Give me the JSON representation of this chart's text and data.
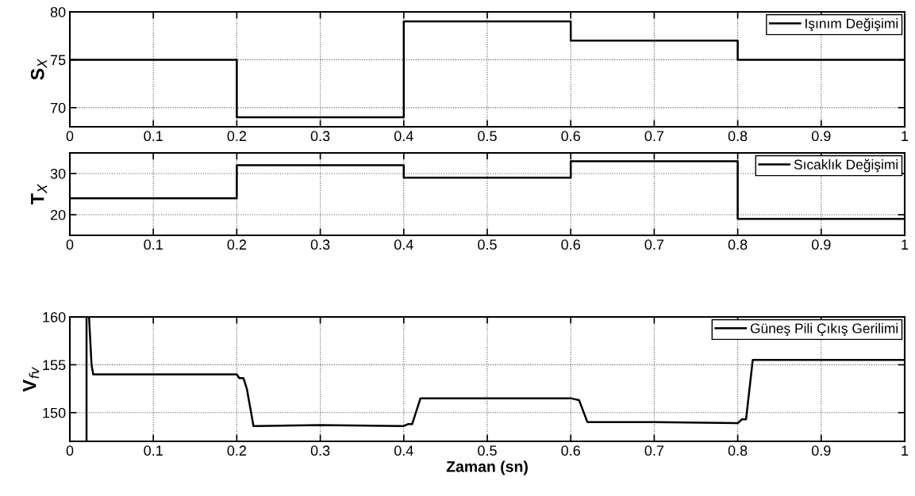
{
  "chart_data": [
    {
      "type": "step",
      "ylabel": "S$_{X}$",
      "x": [
        0,
        0.2,
        0.4,
        0.6,
        0.8,
        1
      ],
      "series": [
        {
          "name": "Işınım Değişimi",
          "color": "#000000",
          "values": [
            75,
            69,
            79,
            77,
            75,
            75
          ]
        }
      ],
      "xlim": [
        0,
        1
      ],
      "xticks": [
        0,
        0.1,
        0.2,
        0.3,
        0.4,
        0.5,
        0.6,
        0.7,
        0.8,
        0.9,
        1
      ],
      "ylim": [
        68,
        80
      ],
      "yticks": [
        70,
        75,
        80
      ],
      "grid": true,
      "legend": "top right"
    },
    {
      "type": "step",
      "ylabel": "T$_{X}$",
      "x": [
        0,
        0.2,
        0.4,
        0.6,
        0.8,
        1
      ],
      "series": [
        {
          "name": "Sıcaklık Değişimi",
          "color": "#000000",
          "values": [
            24,
            32,
            29,
            33,
            19,
            19
          ]
        }
      ],
      "xlim": [
        0,
        1
      ],
      "xticks": [
        0,
        0.1,
        0.2,
        0.3,
        0.4,
        0.5,
        0.6,
        0.7,
        0.8,
        0.9,
        1
      ],
      "ylim": [
        15,
        35
      ],
      "yticks": [
        20,
        30
      ],
      "grid": true,
      "legend": "top right"
    },
    {
      "type": "line",
      "ylabel": "V$_{fv}$",
      "xlabel": "Zaman (sn)",
      "x": [
        0.02,
        0.02,
        0.023,
        0.026,
        0.028,
        0.2,
        0.203,
        0.208,
        0.212,
        0.22,
        0.3,
        0.4,
        0.405,
        0.41,
        0.42,
        0.6,
        0.605,
        0.61,
        0.62,
        0.7,
        0.8,
        0.805,
        0.81,
        0.818,
        1
      ],
      "series": [
        {
          "name": "Güneş Pili Çıkış Gerilimi",
          "color": "#000000",
          "values": [
            147,
            160,
            160,
            155,
            154,
            154,
            153.6,
            153.6,
            152.5,
            148.6,
            148.7,
            148.6,
            148.8,
            148.8,
            151.5,
            151.5,
            151.4,
            151.3,
            149,
            149,
            148.9,
            149.3,
            149.3,
            155.5,
            155.5
          ]
        }
      ],
      "xlim": [
        0,
        1
      ],
      "xticks": [
        0,
        0.1,
        0.2,
        0.3,
        0.4,
        0.5,
        0.6,
        0.7,
        0.8,
        0.9,
        1
      ],
      "ylim": [
        147,
        160
      ],
      "yticks": [
        150,
        155,
        160
      ],
      "grid": true,
      "legend": "top right"
    }
  ]
}
